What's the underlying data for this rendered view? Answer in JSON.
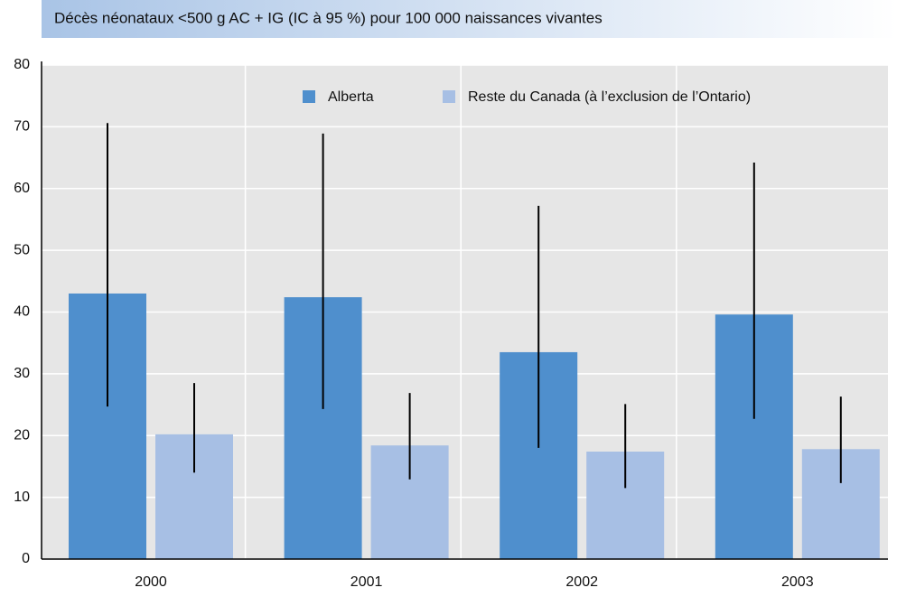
{
  "chart_data": {
    "type": "bar",
    "title": "Décès néonataux <500 g AC + IG (IC à 95 %) pour 100 000 naissances vivantes",
    "categories": [
      "2000",
      "2001",
      "2002",
      "2003"
    ],
    "series": [
      {
        "name": "Alberta",
        "color": "#4f8fcd",
        "values": [
          43.0,
          42.4,
          33.5,
          39.6
        ],
        "ci_low": [
          24.7,
          24.3,
          18.0,
          22.7
        ],
        "ci_high": [
          70.6,
          68.9,
          57.2,
          64.2
        ]
      },
      {
        "name": "Reste du Canada (à l’exclusion de l’Ontario)",
        "color": "#a7bfe4",
        "values": [
          20.2,
          18.4,
          17.4,
          17.8
        ],
        "ci_low": [
          14.0,
          12.9,
          11.5,
          12.3
        ],
        "ci_high": [
          28.5,
          26.9,
          25.1,
          26.3
        ]
      }
    ],
    "ylim": [
      0,
      80
    ],
    "yticks": [
      0,
      10,
      20,
      30,
      40,
      50,
      60,
      70,
      80
    ],
    "grid": true,
    "legend": "top"
  }
}
